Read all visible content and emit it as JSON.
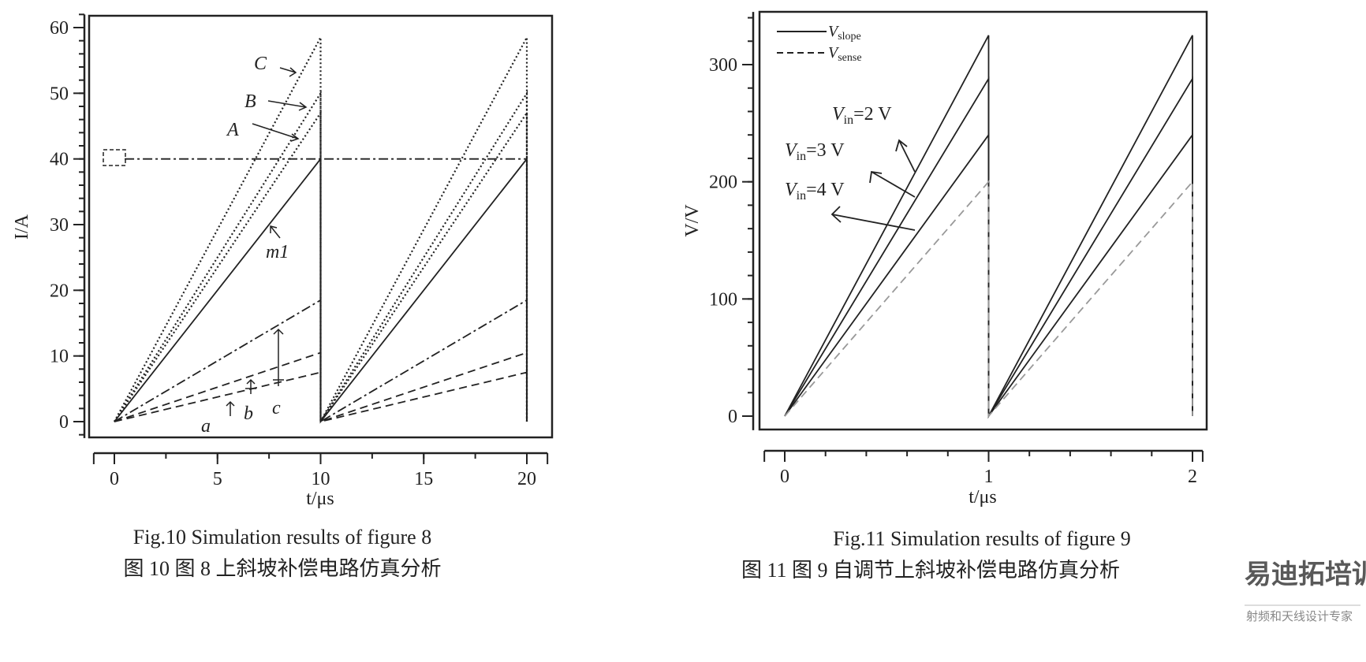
{
  "chart_data": [
    {
      "type": "line",
      "title": "Fig.10 Simulation results of figure 8",
      "title_cn": "图 10 图 8 上斜坡补偿电路仿真分析",
      "xlabel": "t/μs",
      "ylabel": "I/A",
      "xlim": [
        -1,
        21
      ],
      "ylim": [
        -2.5,
        62
      ],
      "xticks": [
        0,
        5,
        10,
        15,
        20
      ],
      "yticks": [
        0,
        10,
        20,
        30,
        40,
        50,
        60
      ],
      "period": 10,
      "series": [
        {
          "name": "C",
          "style": "dotted",
          "values_start": 0,
          "values_peak": 58.5
        },
        {
          "name": "B",
          "style": "dotted",
          "values_start": 0,
          "values_peak": 50
        },
        {
          "name": "A",
          "style": "dotted",
          "values_start": 0,
          "values_peak": 47
        },
        {
          "name": "m1",
          "style": "solid",
          "values_start": 0,
          "values_peak": 40
        },
        {
          "name": "c",
          "style": "dashdot",
          "values_start": 0,
          "values_peak": 18.5
        },
        {
          "name": "b",
          "style": "dashed",
          "values_start": 0,
          "values_peak": 10.5
        },
        {
          "name": "a",
          "style": "dashed",
          "values_start": 0,
          "values_peak": 7.5
        }
      ],
      "reference_line": {
        "y": 40,
        "style": "dashdot"
      },
      "annotations": {
        "C": "C",
        "B": "B",
        "A": "A",
        "m1": "m1",
        "a": "a",
        "b": "b",
        "c": "c"
      }
    },
    {
      "type": "line",
      "title": "Fig.11 Simulation results of figure 9",
      "title_cn": "图 11 图 9 自调节上斜坡补偿电路仿真分析",
      "xlabel": "t/μs",
      "ylabel": "V/V",
      "xlim": [
        -0.1,
        2.05
      ],
      "ylim": [
        -12,
        345
      ],
      "xticks": [
        0,
        1,
        2
      ],
      "yticks": [
        0,
        100,
        200,
        300
      ],
      "period": 1,
      "legend": {
        "position": "top-left",
        "entries": [
          {
            "label": "V",
            "sub": "slope",
            "style": "solid"
          },
          {
            "label": "V",
            "sub": "sense",
            "style": "dashed"
          }
        ]
      },
      "series": [
        {
          "name": "Vslope Vin=2 V",
          "style": "solid",
          "values_start": 0,
          "values_peak": 325
        },
        {
          "name": "Vslope Vin=3 V",
          "style": "solid",
          "values_start": 0,
          "values_peak": 288
        },
        {
          "name": "Vslope Vin=4 V",
          "style": "solid",
          "values_start": 0,
          "values_peak": 240
        },
        {
          "name": "Vsense",
          "style": "dashed",
          "values_start": 0,
          "values_peak": 200
        }
      ],
      "annotations": {
        "vin2": {
          "v": "V",
          "sub": "in",
          "rest": "=2 V"
        },
        "vin3": {
          "v": "V",
          "sub": "in",
          "rest": "=3 V"
        },
        "vin4": {
          "v": "V",
          "sub": "in",
          "rest": "=4 V"
        }
      }
    }
  ],
  "watermark": {
    "main": "易迪拓培训",
    "sub": "射频和天线设计专家"
  }
}
